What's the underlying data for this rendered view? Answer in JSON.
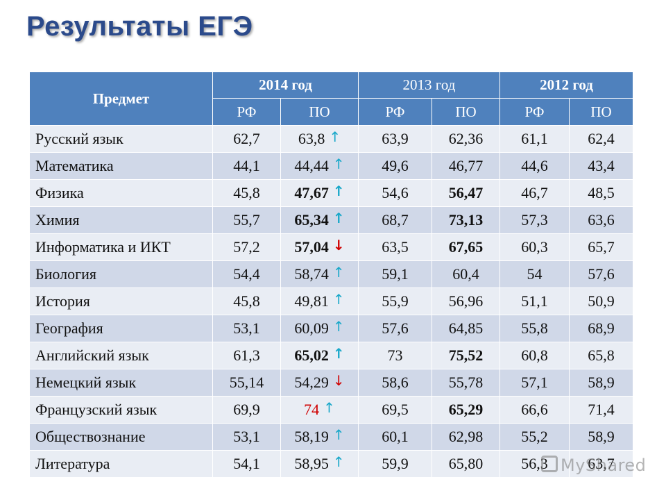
{
  "title": "Результаты ЕГЭ",
  "header": {
    "subject": "Предмет",
    "years": [
      "2014 год",
      "2013 год",
      "2012 год"
    ],
    "sub": [
      "РФ",
      "ПО",
      "РФ",
      "ПО",
      "РФ",
      "ПО"
    ]
  },
  "colors": {
    "title": "#2b4a8b",
    "header_bg": "#4f81bd",
    "row_light": "#e9edf4",
    "row_dark": "#d0d8e8",
    "arrow_up": "#19a8c9",
    "arrow_down": "#d00000",
    "highlight_red": "#d00000"
  },
  "rows": [
    {
      "subject": "Русский язык",
      "v": [
        "62,7",
        "63,8",
        "63,9",
        "62,36",
        "61,1",
        "62,4"
      ],
      "arrow": "up",
      "arrow_icon": "arrow-up-icon"
    },
    {
      "subject": "Математика",
      "v": [
        "44,1",
        "44,44",
        "49,6",
        "46,77",
        "44,6",
        "43,4"
      ],
      "arrow": "up",
      "arrow_icon": "arrow-up-icon"
    },
    {
      "subject": "Физика",
      "v": [
        "45,8",
        "47,67",
        "54,6",
        "56,47",
        "46,7",
        "48,5"
      ],
      "arrow": "up",
      "arrow_icon": "arrow-up-icon",
      "bold": [
        1,
        3
      ]
    },
    {
      "subject": "Химия",
      "v": [
        "55,7",
        "65,34",
        "68,7",
        "73,13",
        "57,3",
        "63,6"
      ],
      "arrow": "up",
      "arrow_icon": "arrow-up-icon",
      "bold": [
        1,
        3
      ]
    },
    {
      "subject": "Информатика и ИКТ",
      "v": [
        "57,2",
        "57,04",
        "63,5",
        "67,65",
        "60,3",
        "65,7"
      ],
      "arrow": "down",
      "arrow_icon": "arrow-down-icon",
      "bold": [
        1,
        3
      ]
    },
    {
      "subject": "Биология",
      "v": [
        "54,4",
        "58,74",
        "59,1",
        "60,4",
        "54",
        "57,6"
      ],
      "arrow": "up",
      "arrow_icon": "arrow-up-icon"
    },
    {
      "subject": "История",
      "v": [
        "45,8",
        "49,81",
        "55,9",
        "56,96",
        "51,1",
        "50,9"
      ],
      "arrow": "up",
      "arrow_icon": "arrow-up-icon"
    },
    {
      "subject": "География",
      "v": [
        "53,1",
        "60,09",
        "57,6",
        "64,85",
        "55,8",
        "68,9"
      ],
      "arrow": "up",
      "arrow_icon": "arrow-up-icon"
    },
    {
      "subject": "Английский язык",
      "v": [
        "61,3",
        "65,02",
        "73",
        "75,52",
        "60,8",
        "65,8"
      ],
      "arrow": "up",
      "arrow_icon": "arrow-up-icon",
      "bold": [
        1,
        3
      ]
    },
    {
      "subject": "Немецкий язык",
      "v": [
        "55,14",
        "54,29",
        "58,6",
        "55,78",
        "57,1",
        "58,9"
      ],
      "arrow": "down",
      "arrow_icon": "arrow-down-icon"
    },
    {
      "subject": "Французский язык",
      "v": [
        "69,9",
        "74",
        "69,5",
        "65,29",
        "66,6",
        "71,4"
      ],
      "arrow": "up",
      "arrow_icon": "arrow-up-icon",
      "bold": [
        3
      ],
      "red": [
        1
      ]
    },
    {
      "subject": "Обществознание",
      "v": [
        "53,1",
        "58,19",
        "60,1",
        "62,98",
        "55,2",
        "58,9"
      ],
      "arrow": "up",
      "arrow_icon": "arrow-up-icon"
    },
    {
      "subject": "Литература",
      "v": [
        "54,1",
        "58,95",
        "59,9",
        "65,80",
        "56,3",
        "63,7"
      ],
      "arrow": "up",
      "arrow_icon": "arrow-up-icon"
    }
  ],
  "watermark": "MyShared"
}
